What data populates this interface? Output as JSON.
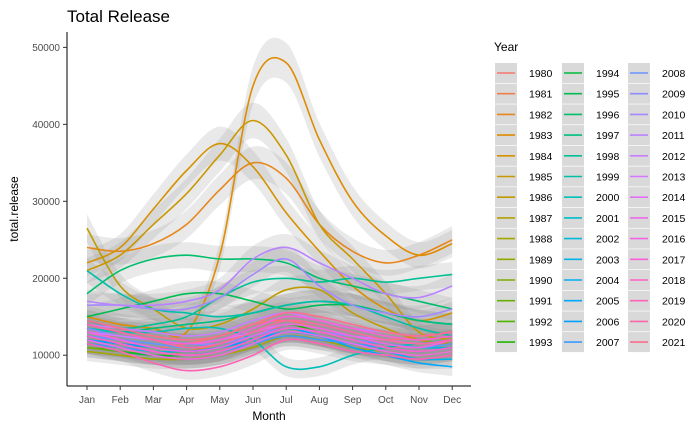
{
  "chart_data": {
    "type": "line",
    "title": "Total Release",
    "xlabel": "Month",
    "ylabel": "total.release",
    "categories": [
      "Jan",
      "Feb",
      "Mar",
      "Apr",
      "May",
      "Jun",
      "Jul",
      "Aug",
      "Sep",
      "Oct",
      "Nov",
      "Dec"
    ],
    "y_ticks": [
      "10000",
      "20000",
      "30000",
      "40000",
      "50000"
    ],
    "ylim": [
      6000,
      52000
    ],
    "grid": false,
    "confidence_band": true,
    "legend": {
      "title": "Year",
      "placement": "right",
      "columns": 3
    },
    "series": [
      {
        "name": "1980",
        "color": "#F8766D",
        "values": [
          13500,
          12000,
          11000,
          11500,
          12500,
          14000,
          14500,
          13500,
          12500,
          12000,
          12500,
          13000
        ]
      },
      {
        "name": "1981",
        "color": "#F07E4D",
        "values": [
          12000,
          11000,
          10000,
          10500,
          11500,
          13000,
          13500,
          12500,
          11500,
          11000,
          11500,
          12000
        ]
      },
      {
        "name": "1982",
        "color": "#E7861B",
        "values": [
          24000,
          23500,
          24500,
          27000,
          31500,
          35000,
          33000,
          27000,
          23500,
          22000,
          23000,
          25000
        ]
      },
      {
        "name": "1983",
        "color": "#DE8C00",
        "values": [
          15000,
          14000,
          13500,
          13000,
          23000,
          45000,
          48000,
          38000,
          30000,
          25500,
          23000,
          24500
        ]
      },
      {
        "name": "1984",
        "color": "#D49200",
        "values": [
          22000,
          24000,
          29000,
          34000,
          37500,
          34500,
          28500,
          23500,
          19000,
          16000,
          14500,
          15500
        ]
      },
      {
        "name": "1985",
        "color": "#C99800",
        "values": [
          21000,
          23000,
          27000,
          31000,
          36000,
          40500,
          36000,
          27000,
          22500,
          18000,
          13000,
          12000
        ]
      },
      {
        "name": "1986",
        "color": "#BE9C00",
        "values": [
          26500,
          19000,
          16000,
          13500,
          14000,
          16000,
          18500,
          18500,
          15500,
          13500,
          12000,
          11500
        ]
      },
      {
        "name": "1987",
        "color": "#B3A000",
        "values": [
          11500,
          11000,
          10500,
          10000,
          10500,
          12000,
          13500,
          13000,
          12000,
          11000,
          10500,
          11000
        ]
      },
      {
        "name": "1988",
        "color": "#A3A500",
        "values": [
          10500,
          10000,
          9500,
          9500,
          10000,
          11000,
          12500,
          12000,
          11000,
          10500,
          10000,
          10500
        ]
      },
      {
        "name": "1989",
        "color": "#92A900",
        "values": [
          11000,
          10500,
          10000,
          9500,
          10000,
          11500,
          13000,
          12500,
          11500,
          10500,
          10000,
          10500
        ]
      },
      {
        "name": "1990",
        "color": "#80AC00",
        "values": [
          12500,
          11500,
          11000,
          10500,
          11000,
          12000,
          13000,
          12500,
          11500,
          11000,
          10500,
          11000
        ]
      },
      {
        "name": "1991",
        "color": "#69B100",
        "values": [
          11000,
          10500,
          10000,
          10000,
          10500,
          12000,
          13500,
          13000,
          12000,
          11000,
          10500,
          11000
        ]
      },
      {
        "name": "1992",
        "color": "#4FB400",
        "values": [
          11500,
          11000,
          10500,
          10500,
          11000,
          12500,
          14000,
          13500,
          12500,
          11500,
          11000,
          11500
        ]
      },
      {
        "name": "1993",
        "color": "#1FB700",
        "values": [
          12000,
          11500,
          11000,
          10500,
          11000,
          12500,
          14000,
          13000,
          12000,
          11500,
          11000,
          11500
        ]
      },
      {
        "name": "1994",
        "color": "#00BA38",
        "values": [
          11500,
          10500,
          10000,
          10000,
          10500,
          12000,
          13500,
          13000,
          12000,
          11000,
          10500,
          11000
        ]
      },
      {
        "name": "1995",
        "color": "#00BC54",
        "values": [
          15000,
          16000,
          17000,
          18000,
          18000,
          17000,
          16000,
          16500,
          16500,
          15500,
          14500,
          14000
        ]
      },
      {
        "name": "1996",
        "color": "#00BE6C",
        "values": [
          18000,
          21000,
          22500,
          23000,
          22500,
          22500,
          22000,
          20000,
          19000,
          18000,
          17000,
          16000
        ]
      },
      {
        "name": "1997",
        "color": "#00BF80",
        "values": [
          13500,
          13000,
          13500,
          14000,
          14500,
          15500,
          16500,
          17000,
          16500,
          15500,
          14500,
          14000
        ]
      },
      {
        "name": "1998",
        "color": "#00C094",
        "values": [
          14500,
          13500,
          14000,
          15000,
          17500,
          19500,
          20000,
          19500,
          20000,
          19500,
          20000,
          20500
        ]
      },
      {
        "name": "1999",
        "color": "#00C0A7",
        "values": [
          21000,
          18000,
          16000,
          15500,
          15000,
          15500,
          16500,
          17000,
          16500,
          15000,
          13500,
          12500
        ]
      },
      {
        "name": "2000",
        "color": "#00BFB8",
        "values": [
          13500,
          13000,
          13000,
          13500,
          13500,
          12000,
          8500,
          8500,
          10000,
          11000,
          11500,
          12000
        ]
      },
      {
        "name": "2001",
        "color": "#00BDC9",
        "values": [
          11500,
          11000,
          10500,
          10500,
          11000,
          12000,
          13000,
          12500,
          11500,
          11000,
          10500,
          11000
        ]
      },
      {
        "name": "2002",
        "color": "#00B9D8",
        "values": [
          12000,
          11500,
          11000,
          10500,
          11000,
          12000,
          13500,
          13000,
          12000,
          11500,
          11000,
          11000
        ]
      },
      {
        "name": "2003",
        "color": "#00B4E6",
        "values": [
          13000,
          12500,
          12000,
          11500,
          11500,
          12500,
          13500,
          12500,
          11500,
          10500,
          9500,
          9500
        ]
      },
      {
        "name": "2004",
        "color": "#00AFF2",
        "values": [
          12500,
          12000,
          11500,
          11000,
          11500,
          12500,
          13500,
          13000,
          12000,
          11000,
          10500,
          11000
        ]
      },
      {
        "name": "2005",
        "color": "#00A8FB",
        "values": [
          13500,
          12500,
          12000,
          11500,
          11500,
          12500,
          13500,
          12500,
          11000,
          10000,
          9000,
          8500
        ]
      },
      {
        "name": "2006",
        "color": "#00A0FF",
        "values": [
          12000,
          11500,
          11000,
          10500,
          11000,
          12000,
          13000,
          12500,
          11500,
          11000,
          10500,
          11000
        ]
      },
      {
        "name": "2007",
        "color": "#3D9AFF",
        "values": [
          11500,
          11000,
          10500,
          10000,
          10500,
          11500,
          12500,
          12000,
          11500,
          11000,
          10500,
          11000
        ]
      },
      {
        "name": "2008",
        "color": "#6A93FF",
        "values": [
          12500,
          12000,
          11500,
          11000,
          11500,
          12500,
          13500,
          13000,
          12000,
          11500,
          11000,
          11500
        ]
      },
      {
        "name": "2009",
        "color": "#8C8CFF",
        "values": [
          13500,
          12500,
          12000,
          11500,
          11500,
          12500,
          13500,
          13000,
          12500,
          12000,
          11500,
          12000
        ]
      },
      {
        "name": "2010",
        "color": "#A588FF",
        "values": [
          16500,
          16500,
          16000,
          16000,
          17500,
          20500,
          22500,
          19000,
          16500,
          15500,
          15000,
          16000
        ]
      },
      {
        "name": "2011",
        "color": "#B983FF",
        "values": [
          17000,
          16500,
          16500,
          17000,
          18500,
          22500,
          24000,
          22000,
          20000,
          18000,
          17500,
          19000
        ]
      },
      {
        "name": "2012",
        "color": "#C97EFF",
        "values": [
          14000,
          13500,
          13000,
          12500,
          13000,
          14500,
          15500,
          14500,
          13500,
          13000,
          12500,
          13000
        ]
      },
      {
        "name": "2013",
        "color": "#D778FF",
        "values": [
          13000,
          12500,
          12000,
          11500,
          12000,
          13000,
          14000,
          13500,
          12500,
          12000,
          11500,
          12000
        ]
      },
      {
        "name": "2014",
        "color": "#E371F5",
        "values": [
          12500,
          11500,
          10500,
          10000,
          10500,
          12000,
          13500,
          13000,
          12000,
          11000,
          10500,
          11000
        ]
      },
      {
        "name": "2015",
        "color": "#ED6AE9",
        "values": [
          12000,
          11000,
          10000,
          9500,
          10000,
          11500,
          13000,
          12500,
          11500,
          10500,
          10000,
          10500
        ]
      },
      {
        "name": "2016",
        "color": "#F564E3",
        "values": [
          13000,
          12000,
          11000,
          10500,
          11000,
          12500,
          14000,
          13500,
          12500,
          11500,
          11000,
          12000
        ]
      },
      {
        "name": "2017",
        "color": "#FB61D7",
        "values": [
          14000,
          13000,
          12000,
          11500,
          12000,
          13500,
          15000,
          14500,
          13500,
          12500,
          12000,
          12500
        ]
      },
      {
        "name": "2018",
        "color": "#FF61C7",
        "values": [
          12500,
          11500,
          10500,
          10000,
          10500,
          12000,
          13500,
          13000,
          12000,
          11000,
          10500,
          11000
        ]
      },
      {
        "name": "2019",
        "color": "#FF63B6",
        "values": [
          11500,
          10500,
          9000,
          8000,
          8500,
          10000,
          12000,
          11500,
          10500,
          10000,
          9500,
          10000
        ]
      },
      {
        "name": "2020",
        "color": "#FF67A4",
        "values": [
          14000,
          13000,
          12000,
          11000,
          11500,
          13000,
          14500,
          14000,
          13000,
          12000,
          11500,
          12000
        ]
      },
      {
        "name": "2021",
        "color": "#FF6C91",
        "values": [
          14500,
          13500,
          12500,
          12000,
          12500,
          14000,
          15500,
          15000,
          14000,
          13000,
          12500,
          13000
        ]
      }
    ]
  }
}
